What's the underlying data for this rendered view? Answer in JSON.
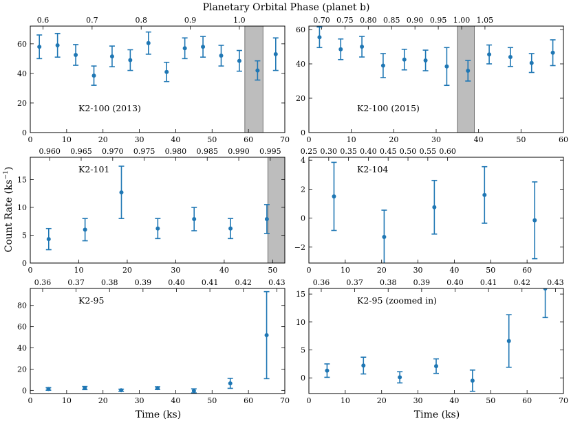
{
  "chart_data": {
    "type": "scatter",
    "figure_title": "Planetary Orbital Phase (planet b)",
    "ylabel": "Count Rate (ks",
    "ylabel_sup": "−1",
    "ylabel_end": ")",
    "xlabel": "Time (ks)",
    "panels": [
      {
        "id": "k2-100-2013",
        "label": "K2-100 (2013)",
        "xlim": [
          0,
          70
        ],
        "ylim": [
          0,
          72
        ],
        "xticks": [
          0,
          10,
          20,
          30,
          40,
          50,
          60,
          70
        ],
        "yticks": [
          0,
          20,
          40,
          60
        ],
        "top_axis": {
          "ticks": [
            {
              "x": 3.5,
              "label": "0.6"
            },
            {
              "x": 17,
              "label": "0.7"
            },
            {
              "x": 30.5,
              "label": "0.8"
            },
            {
              "x": 44,
              "label": "0.9"
            },
            {
              "x": 57.5,
              "label": "1.0"
            }
          ]
        },
        "shade": [
          59,
          64
        ],
        "x": [
          2.5,
          7.5,
          12.5,
          17.5,
          22.5,
          27.5,
          32.5,
          37.5,
          42.5,
          47.5,
          52.5,
          57.5,
          62.5,
          67.5
        ],
        "y": [
          58,
          59,
          52.5,
          38.5,
          51.5,
          49,
          60.5,
          41,
          57,
          58,
          52,
          48.5,
          42,
          53
        ],
        "err": [
          8,
          8,
          7,
          6.5,
          7,
          7,
          7.5,
          6.5,
          7,
          7,
          7,
          7,
          6.5,
          11
        ]
      },
      {
        "id": "k2-100-2015",
        "label": "K2-100 (2015)",
        "xlim": [
          0,
          60
        ],
        "ylim": [
          0,
          62
        ],
        "xticks": [
          0,
          10,
          20,
          30,
          40,
          50,
          60
        ],
        "yticks": [
          0,
          20,
          40,
          60
        ],
        "top_axis": {
          "ticks": [
            {
              "x": 3,
              "label": "0.70"
            },
            {
              "x": 8.5,
              "label": "0.75"
            },
            {
              "x": 14,
              "label": "0.80"
            },
            {
              "x": 19.5,
              "label": "0.85"
            },
            {
              "x": 25,
              "label": "0.90"
            },
            {
              "x": 30.5,
              "label": "0.95"
            },
            {
              "x": 36,
              "label": "1.00"
            },
            {
              "x": 41.5,
              "label": "1.05"
            }
          ]
        },
        "shade": [
          35,
          39
        ],
        "x": [
          2.5,
          7.5,
          12.5,
          17.5,
          22.5,
          27.5,
          32.5,
          37.5,
          42.5,
          47.5,
          52.5,
          57.5
        ],
        "y": [
          55.5,
          48.5,
          50,
          39,
          42.5,
          42,
          38.5,
          36,
          45.5,
          44,
          40.5,
          46.5
        ],
        "err": [
          6,
          6,
          6,
          7,
          6,
          6,
          11,
          6,
          5.5,
          5.5,
          5.5,
          7.5
        ]
      },
      {
        "id": "k2-101",
        "label": "K2-101",
        "xlim": [
          0,
          52.5
        ],
        "ylim": [
          0,
          19
        ],
        "xticks": [
          0,
          10,
          20,
          30,
          40,
          50
        ],
        "yticks": [
          0,
          5,
          10,
          15
        ],
        "top_axis": {
          "ticks": [
            {
              "x": 4,
              "label": "0.960"
            },
            {
              "x": 10.5,
              "label": "0.965"
            },
            {
              "x": 17,
              "label": "0.970"
            },
            {
              "x": 23.5,
              "label": "0.975"
            },
            {
              "x": 30,
              "label": "0.980"
            },
            {
              "x": 36.5,
              "label": "0.985"
            },
            {
              "x": 43,
              "label": "0.990"
            },
            {
              "x": 49.5,
              "label": "0.995"
            }
          ]
        },
        "shade": [
          49,
          52.5
        ],
        "x": [
          3.8,
          11.3,
          18.8,
          26.3,
          33.8,
          41.3,
          48.8
        ],
        "y": [
          4.3,
          6,
          12.7,
          6.2,
          7.9,
          6.2,
          7.9
        ],
        "err": [
          1.9,
          2,
          4.7,
          1.8,
          2.1,
          1.8,
          2.6
        ]
      },
      {
        "id": "k2-104",
        "label": "K2-104",
        "xlim": [
          0,
          70
        ],
        "ylim": [
          -3.1,
          4.2
        ],
        "xticks": [
          0,
          10,
          20,
          30,
          40,
          50,
          60
        ],
        "yticks": [
          -2,
          0,
          2,
          4
        ],
        "top_axis": {
          "ticks": [
            {
              "x": 0,
              "label": "0.25"
            },
            {
              "x": 5.45,
              "label": "0.30"
            },
            {
              "x": 10.9,
              "label": "0.35"
            },
            {
              "x": 16.35,
              "label": "0.40"
            },
            {
              "x": 21.8,
              "label": "0.45"
            },
            {
              "x": 27.25,
              "label": "0.50"
            },
            {
              "x": 32.7,
              "label": "0.55"
            },
            {
              "x": 38.15,
              "label": "0.60"
            }
          ]
        },
        "shade": null,
        "x": [
          6.9,
          20.7,
          34.5,
          48.3,
          62.1
        ],
        "y": [
          1.5,
          -1.3,
          0.75,
          1.6,
          -0.15
        ],
        "err": [
          2.35,
          1.85,
          1.85,
          1.95,
          2.65
        ]
      },
      {
        "id": "k2-95",
        "label": "K2-95",
        "xlim": [
          0,
          70
        ],
        "ylim": [
          -3,
          96
        ],
        "xticks": [
          0,
          10,
          20,
          30,
          40,
          50,
          60,
          70
        ],
        "yticks": [
          0,
          20,
          40,
          60,
          80
        ],
        "top_axis": {
          "ticks": [
            {
              "x": 3.4,
              "label": "0.36"
            },
            {
              "x": 12.6,
              "label": "0.37"
            },
            {
              "x": 21.8,
              "label": "0.38"
            },
            {
              "x": 31.0,
              "label": "0.39"
            },
            {
              "x": 40.2,
              "label": "0.40"
            },
            {
              "x": 49.4,
              "label": "0.41"
            },
            {
              "x": 58.6,
              "label": "0.42"
            },
            {
              "x": 67.8,
              "label": "0.43"
            }
          ]
        },
        "shade": null,
        "x": [
          5,
          15,
          25,
          35,
          45,
          55,
          65
        ],
        "y": [
          1.3,
          2.2,
          0.1,
          2.1,
          -0.5,
          6.6,
          52
        ],
        "err": [
          1.2,
          1.5,
          1.0,
          1.3,
          1.9,
          4.7,
          41
        ]
      },
      {
        "id": "k2-95-zoomed",
        "label": "K2-95 (zoomed in)",
        "xlim": [
          0,
          70
        ],
        "ylim": [
          -2.8,
          16
        ],
        "xticks": [
          0,
          10,
          20,
          30,
          40,
          50,
          60,
          70
        ],
        "yticks": [
          0,
          5,
          10,
          15
        ],
        "top_axis": {
          "ticks": [
            {
              "x": 3.4,
              "label": "0.36"
            },
            {
              "x": 12.6,
              "label": "0.37"
            },
            {
              "x": 21.8,
              "label": "0.38"
            },
            {
              "x": 31.0,
              "label": "0.39"
            },
            {
              "x": 40.2,
              "label": "0.40"
            },
            {
              "x": 49.4,
              "label": "0.41"
            },
            {
              "x": 58.6,
              "label": "0.42"
            },
            {
              "x": 67.8,
              "label": "0.43"
            }
          ]
        },
        "shade": null,
        "x": [
          5,
          15,
          25,
          35,
          45,
          55,
          65
        ],
        "y": [
          1.3,
          2.2,
          0.1,
          2.1,
          -0.5,
          6.6,
          16
        ],
        "err": [
          1.2,
          1.5,
          1.0,
          1.3,
          1.9,
          4.7,
          5.2
        ]
      }
    ]
  }
}
